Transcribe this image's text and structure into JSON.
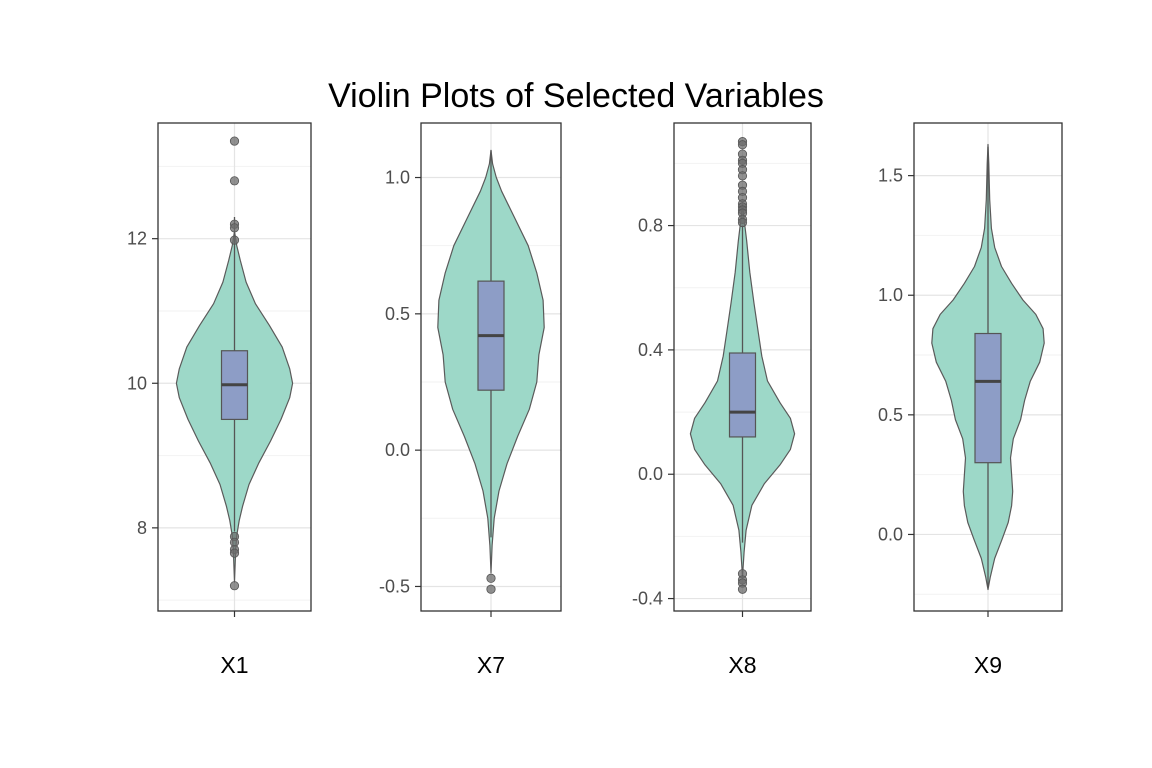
{
  "chart_data": {
    "type": "violin",
    "title": "Violin Plots of Selected Variables",
    "grid": true,
    "legend": "none",
    "colors": {
      "violin_fill": "#9dd8c8",
      "violin_stroke": "#5a5a5a",
      "box_fill": "#8d9dc6",
      "box_stroke": "#555555",
      "median": "#444444",
      "outlier": "#6b6b6b",
      "grid_major": "#e4e4e4",
      "grid_minor": "#f2f2f2",
      "panel_border": "#333333"
    },
    "panels": [
      {
        "name": "X1",
        "ylim": [
          6.85,
          13.6
        ],
        "ticks": [
          8,
          10,
          12
        ],
        "tick_labels": [
          "8",
          "10",
          "12"
        ],
        "minor_ticks": [
          7,
          9,
          11,
          13
        ],
        "violin": {
          "y": [
            7.25,
            7.7,
            7.9,
            8.1,
            8.3,
            8.6,
            8.9,
            9.2,
            9.5,
            9.8,
            10.0,
            10.2,
            10.5,
            10.8,
            11.1,
            11.4,
            11.7,
            11.9,
            12.1
          ],
          "width": [
            0.0,
            0.02,
            0.04,
            0.08,
            0.14,
            0.25,
            0.42,
            0.62,
            0.8,
            0.95,
            1.0,
            0.95,
            0.82,
            0.6,
            0.36,
            0.2,
            0.1,
            0.04,
            0.0
          ]
        },
        "box": {
          "q1": 9.5,
          "median": 9.98,
          "q3": 10.45,
          "whisker_low": 7.95,
          "whisker_high": 12.3
        },
        "outliers": [
          13.35,
          12.8,
          12.2,
          12.15,
          11.98,
          7.88,
          7.8,
          7.7,
          7.65,
          7.2
        ]
      },
      {
        "name": "X7",
        "ylim": [
          -0.59,
          1.2
        ],
        "ticks": [
          -0.5,
          0.0,
          0.5,
          1.0
        ],
        "tick_labels": [
          "-0.5",
          "0.0",
          "0.5",
          "1.0"
        ],
        "minor_ticks": [
          -0.25,
          0.25,
          0.75
        ],
        "violin": {
          "y": [
            -0.45,
            -0.35,
            -0.25,
            -0.15,
            -0.05,
            0.05,
            0.15,
            0.25,
            0.35,
            0.45,
            0.55,
            0.65,
            0.75,
            0.85,
            0.95,
            1.0,
            1.05,
            1.1
          ],
          "width": [
            0.0,
            0.02,
            0.06,
            0.15,
            0.3,
            0.5,
            0.72,
            0.86,
            0.9,
            1.0,
            0.98,
            0.86,
            0.7,
            0.45,
            0.2,
            0.1,
            0.03,
            0.0
          ]
        },
        "box": {
          "q1": 0.22,
          "median": 0.42,
          "q3": 0.62,
          "whisker_low": -0.32,
          "whisker_high": 1.1
        },
        "outliers": [
          -0.47,
          -0.51
        ]
      },
      {
        "name": "X8",
        "ylim": [
          -0.44,
          1.13
        ],
        "ticks": [
          -0.4,
          0.0,
          0.4,
          0.8
        ],
        "tick_labels": [
          "-0.4",
          "0.0",
          "0.4",
          "0.8"
        ],
        "minor_ticks": [
          -0.2,
          0.2,
          0.6,
          1.0
        ],
        "violin": {
          "y": [
            -0.33,
            -0.25,
            -0.18,
            -0.1,
            -0.03,
            0.03,
            0.08,
            0.13,
            0.18,
            0.23,
            0.3,
            0.38,
            0.46,
            0.55,
            0.65,
            0.75,
            0.82,
            0.87
          ],
          "width": [
            0.0,
            0.03,
            0.07,
            0.18,
            0.42,
            0.72,
            0.92,
            1.0,
            0.92,
            0.72,
            0.48,
            0.37,
            0.3,
            0.22,
            0.14,
            0.08,
            0.03,
            0.0
          ]
        },
        "box": {
          "q1": 0.12,
          "median": 0.2,
          "q3": 0.39,
          "whisker_low": -0.22,
          "whisker_high": 0.8
        },
        "outliers": [
          1.07,
          1.06,
          1.03,
          1.01,
          1.0,
          0.98,
          0.96,
          0.93,
          0.91,
          0.89,
          0.87,
          0.86,
          0.85,
          0.84,
          0.82,
          0.81,
          -0.32,
          -0.34,
          -0.35,
          -0.37
        ]
      },
      {
        "name": "X9",
        "ylim": [
          -0.32,
          1.72
        ],
        "ticks": [
          0.0,
          0.5,
          1.0,
          1.5
        ],
        "tick_labels": [
          "0.0",
          "0.5",
          "1.0",
          "1.5"
        ],
        "minor_ticks": [
          -0.25,
          0.25,
          0.75,
          1.25
        ],
        "violin": {
          "y": [
            -0.23,
            -0.18,
            -0.1,
            -0.02,
            0.05,
            0.12,
            0.18,
            0.25,
            0.32,
            0.4,
            0.48,
            0.56,
            0.64,
            0.72,
            0.8,
            0.86,
            0.92,
            0.98,
            1.05,
            1.12,
            1.2,
            1.28,
            1.4,
            1.55,
            1.63
          ],
          "width": [
            0.0,
            0.04,
            0.12,
            0.25,
            0.36,
            0.42,
            0.44,
            0.42,
            0.4,
            0.45,
            0.58,
            0.65,
            0.75,
            0.92,
            1.0,
            0.98,
            0.85,
            0.62,
            0.42,
            0.24,
            0.12,
            0.06,
            0.03,
            0.015,
            0.0
          ]
        },
        "box": {
          "q1": 0.3,
          "median": 0.64,
          "q3": 0.84,
          "whisker_low": -0.22,
          "whisker_high": 1.62
        },
        "outliers": []
      }
    ]
  }
}
